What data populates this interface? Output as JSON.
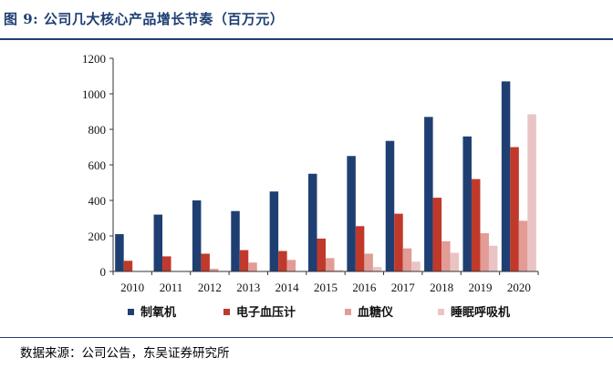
{
  "header": {
    "title": "图 9:  公司几大核心产品增长节奏（百万元）"
  },
  "footer": {
    "source": "数据来源：公司公告，东吴证券研究所"
  },
  "chart_data": {
    "type": "bar",
    "title": "图 9:  公司几大核心产品增长节奏（百万元）",
    "xlabel": "",
    "ylabel": "",
    "ylim": [
      0,
      1200
    ],
    "yticks": [
      0,
      200,
      400,
      600,
      800,
      1000,
      1200
    ],
    "categories": [
      "2010",
      "2011",
      "2012",
      "2013",
      "2014",
      "2015",
      "2016",
      "2017",
      "2018",
      "2019",
      "2020"
    ],
    "legend_position": "bottom",
    "grid": false,
    "series": [
      {
        "name": "制氧机",
        "color": "#1f3f73",
        "values": [
          210,
          320,
          400,
          340,
          450,
          550,
          650,
          735,
          870,
          760,
          1070
        ]
      },
      {
        "name": "电子血压计",
        "color": "#c0392b",
        "values": [
          60,
          85,
          100,
          120,
          115,
          185,
          255,
          325,
          415,
          520,
          700
        ]
      },
      {
        "name": "血糖仪",
        "color": "#e29b95",
        "values": [
          0,
          0,
          15,
          50,
          65,
          75,
          100,
          130,
          170,
          215,
          285
        ]
      },
      {
        "name": "睡眠呼吸机",
        "color": "#eac4c4",
        "values": [
          0,
          0,
          0,
          0,
          0,
          8,
          25,
          55,
          105,
          145,
          885
        ]
      }
    ]
  }
}
